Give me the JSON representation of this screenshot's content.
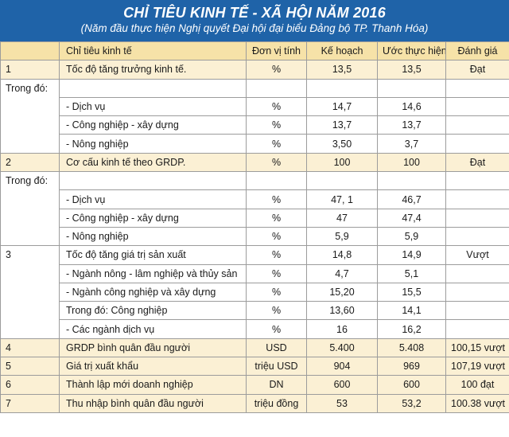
{
  "title": "CHỈ TIÊU KINH TẾ - XÃ HỘI NĂM 2016",
  "subtitle": "(Năm đầu thực hiện Nghị quyết Đại hội đại biểu Đảng bộ TP. Thanh Hóa)",
  "colors": {
    "header_bg": "#1f63a8",
    "header_row": "#f6e2a8",
    "tan_row": "#fbf0d4",
    "border": "#9c9c9c"
  },
  "table": {
    "headers": [
      "Chỉ tiêu kinh tế",
      "Đơn vị tính",
      "Kế hoạch",
      "Ước thực hiện",
      "Đánh giá"
    ],
    "group1": {
      "no": "1",
      "row": [
        "Tốc độ tăng trưởng kinh tế.",
        "%",
        "13,5",
        "13,5",
        "Đạt"
      ]
    },
    "group1_sub": {
      "label": "Trong đó:",
      "rows": [
        [
          "- Dịch vụ",
          "%",
          "14,7",
          "14,6",
          ""
        ],
        [
          "- Công nghiệp - xây dựng",
          "%",
          "13,7",
          "13,7",
          ""
        ],
        [
          "- Nông nghiệp",
          "%",
          "3,50",
          "3,7",
          ""
        ]
      ]
    },
    "group2": {
      "no": "2",
      "row": [
        "Cơ cấu kinh tế theo GRDP.",
        "%",
        "100",
        "100",
        "Đạt"
      ]
    },
    "group2_sub": {
      "label": "Trong đó:",
      "rows": [
        [
          "- Dịch vụ",
          "%",
          "47, 1",
          "46,7",
          ""
        ],
        [
          "- Công nghiệp - xây dựng",
          "%",
          "47",
          "47,4",
          ""
        ],
        [
          "- Nông nghiệp",
          "%",
          "5,9",
          "5,9",
          ""
        ]
      ]
    },
    "group3": {
      "no": "3",
      "rows": [
        [
          "Tốc độ tăng giá trị sản xuất",
          "%",
          "14,8",
          "14,9",
          "Vượt"
        ],
        [
          "- Ngành nông - lâm nghiệp và thủy sản",
          "%",
          "4,7",
          "5,1",
          ""
        ],
        [
          "- Ngành công nghiệp và xây dựng",
          "%",
          "15,20",
          "15,5",
          ""
        ],
        [
          "Trong đó: Công nghiệp",
          "%",
          "13,60",
          "14,1",
          ""
        ],
        [
          "- Các ngành dịch vụ",
          "%",
          "16",
          "16,2",
          ""
        ]
      ]
    },
    "tail": [
      [
        "4",
        "GRDP bình quân đầu người",
        "USD",
        "5.400",
        "5.408",
        "100,15 vượt"
      ],
      [
        "5",
        "Giá trị xuất khẩu",
        "triệu USD",
        "904",
        "969",
        "107,19 vượt"
      ],
      [
        "6",
        "Thành lập mới doanh nghiệp",
        "DN",
        "600",
        "600",
        "100 đạt"
      ],
      [
        "7",
        "Thu nhập bình quân đầu người",
        "triệu đồng",
        "53",
        "53,2",
        "100.38 vượt"
      ]
    ]
  }
}
